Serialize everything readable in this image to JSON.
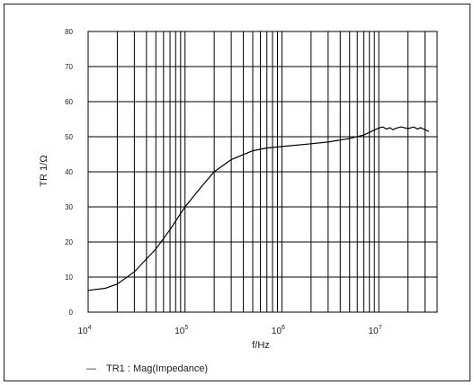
{
  "chart_data": {
    "type": "line",
    "xscale": "log",
    "xlim": [
      10000,
      40000000
    ],
    "ylim": [
      0,
      80
    ],
    "xlabel": "f/Hz",
    "ylabel": "TR 1/Ω",
    "yticks": [
      "0",
      "10",
      "20",
      "30",
      "40",
      "50",
      "60",
      "70",
      "80"
    ],
    "xticks": [
      {
        "base": "10",
        "exp": "4"
      },
      {
        "base": "10",
        "exp": "5"
      },
      {
        "base": "10",
        "exp": "6"
      },
      {
        "base": "10",
        "exp": "7"
      }
    ],
    "grid": true,
    "legend": {
      "position": "bottom-left",
      "label": "TR1 : Mag(Impedance)",
      "marker": "—"
    },
    "series": [
      {
        "name": "TR1 : Mag(Impedance)",
        "color": "#000000",
        "x": [
          10000,
          15000,
          20000,
          30000,
          50000,
          70000,
          100000,
          150000,
          200000,
          300000,
          500000,
          700000,
          1000000,
          2000000,
          3000000,
          5000000,
          7000000,
          10000000,
          11000000,
          12000000,
          13000000,
          14000000,
          15000000,
          17000000,
          20000000,
          23000000,
          25000000,
          27000000,
          30000000,
          33000000
        ],
        "y": [
          6.2,
          6.8,
          8.0,
          11.5,
          18.0,
          23.5,
          30.0,
          36.0,
          40.0,
          43.5,
          46.0,
          46.8,
          47.2,
          48.0,
          48.5,
          49.5,
          50.5,
          52.5,
          52.8,
          52.2,
          52.6,
          52.0,
          52.4,
          52.8,
          52.3,
          52.8,
          52.2,
          52.6,
          52.0,
          51.5
        ]
      }
    ]
  }
}
